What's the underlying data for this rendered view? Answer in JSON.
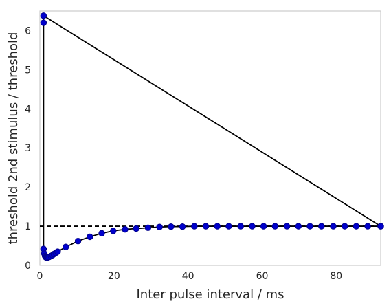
{
  "chart_data": {
    "type": "line",
    "title": "",
    "xlabel": "Inter pulse interval / ms",
    "ylabel": "threshold 2nd stimulus / threshold",
    "xlim": [
      0,
      92
    ],
    "ylim": [
      0,
      6.5
    ],
    "xticks": [
      "0",
      "20",
      "40",
      "60",
      "80"
    ],
    "xtick_values": [
      0,
      20,
      40,
      60,
      80
    ],
    "yticks": [
      "0",
      "1",
      "2",
      "3",
      "4",
      "5",
      "6"
    ],
    "ytick_values": [
      0,
      1,
      2,
      3,
      4,
      5,
      6
    ],
    "grid": false,
    "reference_line": {
      "y": 1.0,
      "style": "dashed",
      "color": "#000000"
    },
    "series": [
      {
        "line_color": "#000000",
        "marker_color": "#0000cc",
        "marker_edge": "#00008b",
        "x": [
          92.0,
          1.0,
          1.0,
          1.0,
          1.2,
          1.4,
          1.6,
          1.8,
          2.0,
          2.3,
          2.6,
          3.0,
          3.4,
          3.8,
          4.3,
          4.8,
          7.0,
          10.3,
          13.5,
          16.7,
          19.8,
          23.0,
          26.0,
          29.2,
          32.3,
          35.4,
          38.5,
          41.7,
          44.8,
          47.9,
          51.0,
          54.2,
          57.3,
          60.4,
          63.5,
          66.7,
          69.8,
          72.9,
          76.0,
          79.2,
          82.3,
          85.4,
          88.5,
          92.0
        ],
        "y": [
          1.0,
          6.38,
          6.2,
          0.42,
          0.3,
          0.24,
          0.21,
          0.2,
          0.2,
          0.21,
          0.22,
          0.24,
          0.26,
          0.29,
          0.32,
          0.35,
          0.47,
          0.62,
          0.73,
          0.82,
          0.88,
          0.92,
          0.94,
          0.96,
          0.98,
          0.99,
          0.99,
          1.0,
          1.0,
          1.0,
          1.0,
          1.0,
          1.0,
          1.0,
          1.0,
          1.0,
          1.0,
          1.0,
          1.0,
          1.0,
          1.0,
          1.0,
          1.0,
          1.0
        ]
      }
    ]
  }
}
